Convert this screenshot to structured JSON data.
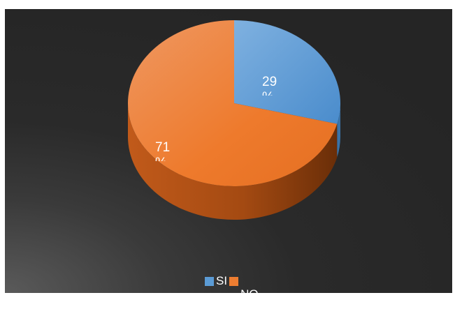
{
  "chart_data": {
    "type": "pie",
    "style": "3d",
    "categories": [
      "SI",
      "NO"
    ],
    "values": [
      29,
      71
    ],
    "colors": [
      "#5b9bd5",
      "#ed7d31"
    ],
    "data_labels": [
      "29\n%",
      "71\n%"
    ],
    "legend": [
      "SI",
      "NO"
    ],
    "legend_placement": "bottom",
    "title": ""
  }
}
